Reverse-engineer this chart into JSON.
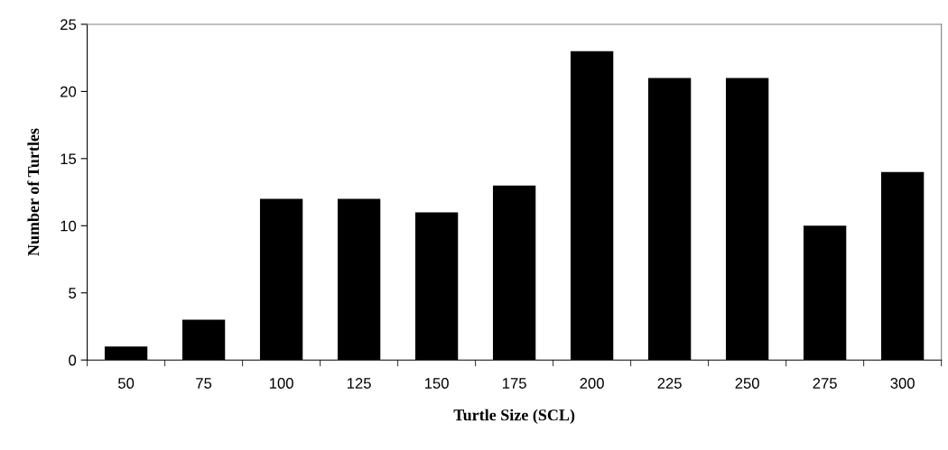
{
  "chart_data": {
    "type": "bar",
    "xlabel": "Turtle Size (SCL)",
    "ylabel": "Number of Turtles",
    "categories": [
      "50",
      "75",
      "100",
      "125",
      "150",
      "175",
      "200",
      "225",
      "250",
      "275",
      "300"
    ],
    "values": [
      1,
      3,
      12,
      12,
      11,
      13,
      23,
      21,
      21,
      10,
      14
    ],
    "color": "#000000",
    "ylim": [
      0,
      25
    ],
    "yticks": [
      0,
      5,
      10,
      15,
      20,
      25
    ],
    "grid": false,
    "legend": false
  }
}
